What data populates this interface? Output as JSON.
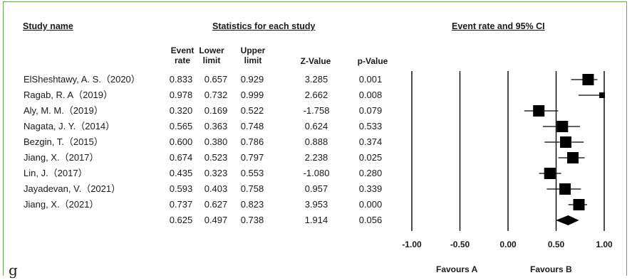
{
  "headers": {
    "study": "Study name",
    "statistics": "Statistics for each study",
    "plot": "Event rate and 95% CI"
  },
  "columns": [
    "Event\nrate",
    "Lower\nlimit",
    "Upper\nlimit",
    "Z-Value",
    "p-Value"
  ],
  "footer_letter": "g",
  "chart_data": {
    "type": "forest",
    "x_ticks": [
      "-1.00",
      "-0.50",
      "0.00",
      "0.50",
      "1.00"
    ],
    "xlim": [
      -1,
      1
    ],
    "favours_left": "Favours A",
    "favours_right": "Favours B",
    "studies": [
      {
        "name": "ElSheshtawy, A. S.（2020）",
        "rate": "0.833",
        "lower": "0.657",
        "upper": "0.929",
        "z": "3.285",
        "p": "0.001"
      },
      {
        "name": "Ragab, R. A（2019）",
        "rate": "0.978",
        "lower": "0.732",
        "upper": "0.999",
        "z": "2.662",
        "p": "0.008"
      },
      {
        "name": "Aly, M. M.（2019）",
        "rate": "0.320",
        "lower": "0.169",
        "upper": "0.522",
        "z": "-1.758",
        "p": "0.079"
      },
      {
        "name": "Nagata, J. Y.（2014）",
        "rate": "0.565",
        "lower": "0.363",
        "upper": "0.748",
        "z": "0.624",
        "p": "0.533"
      },
      {
        "name": "Bezgin, T.（2015）",
        "rate": "0.600",
        "lower": "0.380",
        "upper": "0.786",
        "z": "0.888",
        "p": "0.374"
      },
      {
        "name": "Jiang, X.（2017）",
        "rate": "0.674",
        "lower": "0.523",
        "upper": "0.797",
        "z": "2.238",
        "p": "0.025"
      },
      {
        "name": "Lin, J.（2017）",
        "rate": "0.435",
        "lower": "0.323",
        "upper": "0.553",
        "z": "-1.080",
        "p": "0.280"
      },
      {
        "name": "Jayadevan, V.（2021）",
        "rate": "0.593",
        "lower": "0.403",
        "upper": "0.758",
        "z": "0.957",
        "p": "0.339"
      },
      {
        "name": "Jiang, X.（2021）",
        "rate": "0.737",
        "lower": "0.627",
        "upper": "0.823",
        "z": "3.953",
        "p": "0.000"
      }
    ],
    "pooled": {
      "rate": "0.625",
      "lower": "0.497",
      "upper": "0.738",
      "z": "1.914",
      "p": "0.056"
    }
  }
}
